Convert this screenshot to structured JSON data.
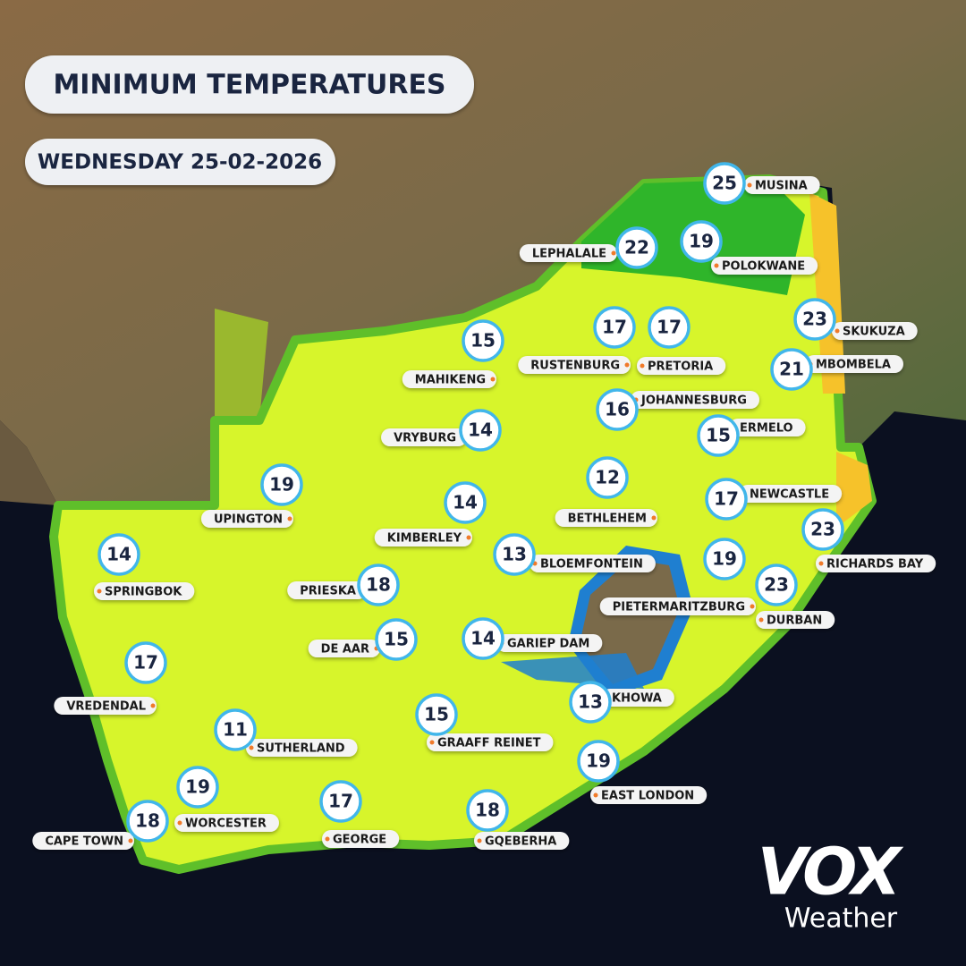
{
  "header": {
    "title": "MINIMUM TEMPERATURES",
    "date": "WEDNESDAY 25-02-2026"
  },
  "cities": [
    {
      "name": "MUSINA",
      "temp": 25
    },
    {
      "name": "LEPHALALE",
      "temp": 22
    },
    {
      "name": "POLOKWANE",
      "temp": 19
    },
    {
      "name": "SKUKUZA",
      "temp": 23
    },
    {
      "name": "MBOMBELA",
      "temp": 21
    },
    {
      "name": "MAHIKENG",
      "temp": 15
    },
    {
      "name": "RUSTENBURG",
      "temp": 17
    },
    {
      "name": "PRETORIA",
      "temp": 17
    },
    {
      "name": "JOHANNESBURG",
      "temp": 16
    },
    {
      "name": "ERMELO",
      "temp": 15
    },
    {
      "name": "VRYBURG",
      "temp": 14
    },
    {
      "name": "BETHLEHEM",
      "temp": 12
    },
    {
      "name": "NEWCASTLE",
      "temp": 17
    },
    {
      "name": "UPINGTON",
      "temp": 19
    },
    {
      "name": "KIMBERLEY",
      "temp": 14
    },
    {
      "name": "RICHARDS BAY",
      "temp": 23
    },
    {
      "name": "SPRINGBOK",
      "temp": 14
    },
    {
      "name": "BLOEMFONTEIN",
      "temp": 13
    },
    {
      "name": "PIETERMARITZBURG",
      "temp": 19
    },
    {
      "name": "PRIESKA",
      "temp": 18
    },
    {
      "name": "DURBAN",
      "temp": 23
    },
    {
      "name": "DE AAR",
      "temp": 15
    },
    {
      "name": "GARIEP DAM",
      "temp": 14
    },
    {
      "name": "VREDENDAL",
      "temp": 17
    },
    {
      "name": "KHOWA",
      "temp": 13
    },
    {
      "name": "SUTHERLAND",
      "temp": 11
    },
    {
      "name": "GRAAFF REINET",
      "temp": 15
    },
    {
      "name": "EAST LONDON",
      "temp": 19
    },
    {
      "name": "WORCESTER",
      "temp": 19
    },
    {
      "name": "GEORGE",
      "temp": 17
    },
    {
      "name": "CAPE TOWN",
      "temp": 18
    },
    {
      "name": "GQEBERHA",
      "temp": 18
    }
  ],
  "logo": {
    "brand": "VOX",
    "product": "Weather"
  }
}
